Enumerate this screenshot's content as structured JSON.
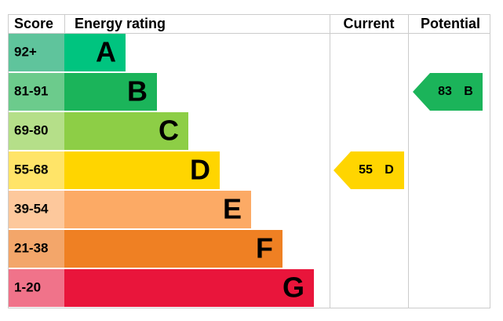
{
  "chart_data": {
    "type": "epc",
    "headers": {
      "score": "Score",
      "rating": "Energy rating",
      "current": "Current",
      "potential": "Potential"
    },
    "bands": [
      {
        "score": "92+",
        "letter": "A",
        "color": "#00c47f",
        "score_color": "#5fc49c"
      },
      {
        "score": "81-91",
        "letter": "B",
        "color": "#1bb45a",
        "score_color": "#6ccb8c"
      },
      {
        "score": "69-80",
        "letter": "C",
        "color": "#8dce46",
        "score_color": "#b5df89"
      },
      {
        "score": "55-68",
        "letter": "D",
        "color": "#ffd500",
        "score_color": "#ffe468"
      },
      {
        "score": "39-54",
        "letter": "E",
        "color": "#fcaa65",
        "score_color": "#fdc89c"
      },
      {
        "score": "21-38",
        "letter": "F",
        "color": "#ef8023",
        "score_color": "#f3a66a"
      },
      {
        "score": "1-20",
        "letter": "G",
        "color": "#e9153b",
        "score_color": "#f0738a"
      }
    ],
    "current": {
      "value": 55,
      "letter": "D"
    },
    "potential": {
      "value": 83,
      "letter": "B"
    }
  }
}
